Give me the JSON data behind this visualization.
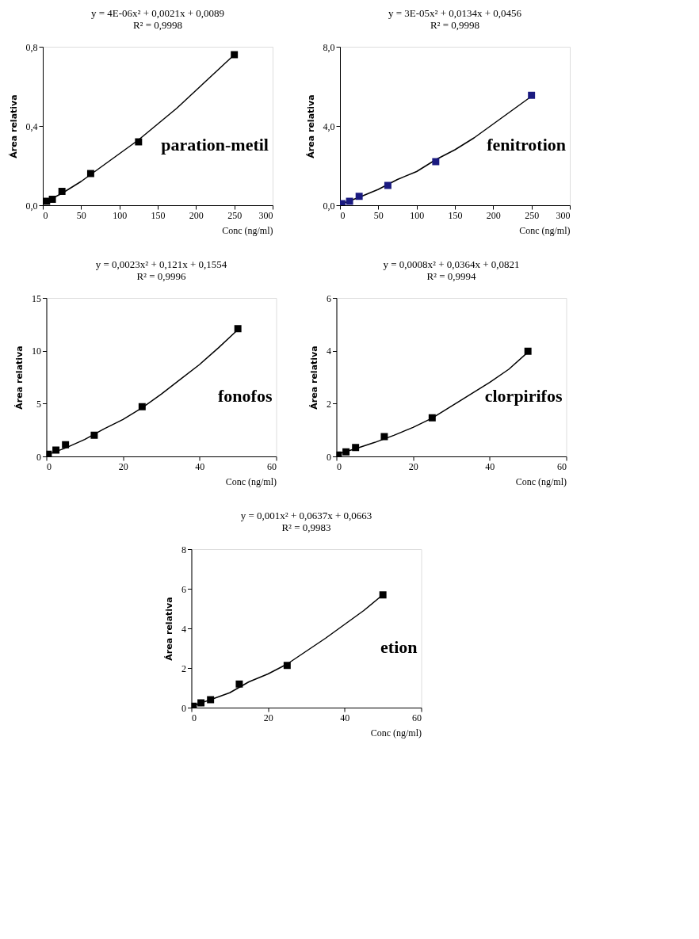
{
  "chart_data": [
    {
      "type": "scatter",
      "annotations": [
        "y = 4E-06x² + 0,0021x + 0,0089",
        "R² = 0,9998",
        "paration-metil"
      ],
      "xlabel": "Conc (ng/ml)",
      "ylabel": "Área relativa",
      "xlim": [
        0,
        300
      ],
      "xticks": [
        0,
        50,
        100,
        150,
        200,
        250,
        300
      ],
      "ylim": [
        0,
        0.8
      ],
      "yticks": [
        {
          "value": 0,
          "label": "0,0"
        },
        {
          "value": 0.4,
          "label": "0,4"
        },
        {
          "value": 0.8,
          "label": "0,8"
        }
      ],
      "series": [
        {
          "type": "line",
          "color": "#000000",
          "marker": "none",
          "x": [
            5,
            25,
            50,
            75,
            100,
            125,
            150,
            175,
            200,
            225,
            250
          ],
          "values": [
            0.02,
            0.06,
            0.12,
            0.19,
            0.26,
            0.33,
            0.41,
            0.49,
            0.58,
            0.67,
            0.76
          ]
        },
        {
          "color": "#000000",
          "marker": "square",
          "x": [
            5,
            12.5,
            25,
            62.5,
            125,
            250
          ],
          "values": [
            0.02,
            0.03,
            0.07,
            0.16,
            0.32,
            0.76
          ]
        }
      ]
    },
    {
      "type": "scatter",
      "annotations": [
        "y = 3E-05x² + 0,0134x + 0,0456",
        "R² = 0,9998",
        "fenitrotion"
      ],
      "xlabel": "Conc (ng/ml)",
      "ylabel": "Área relativa",
      "xlim": [
        0,
        300
      ],
      "xticks": [
        0,
        50,
        100,
        150,
        200,
        250,
        300
      ],
      "ylim": [
        0,
        8
      ],
      "yticks": [
        {
          "value": 0,
          "label": "0,0"
        },
        {
          "value": 4,
          "label": "4,0"
        },
        {
          "value": 8,
          "label": "8,0"
        }
      ],
      "series": [
        {
          "type": "line",
          "color": "#000000",
          "marker": "none",
          "x": [
            2,
            25,
            50,
            75,
            100,
            125,
            150,
            175,
            200,
            225,
            250
          ],
          "values": [
            0.07,
            0.4,
            0.8,
            1.3,
            1.7,
            2.3,
            2.8,
            3.4,
            4.1,
            4.8,
            5.5
          ]
        },
        {
          "color": "#1a1a80",
          "marker": "square",
          "x": [
            2.5,
            12.5,
            25,
            62.5,
            125,
            250
          ],
          "values": [
            0.08,
            0.2,
            0.45,
            1.0,
            2.2,
            5.55
          ]
        }
      ]
    },
    {
      "type": "scatter",
      "annotations": [
        "y = 0,0023x² + 0,121x + 0,1554",
        "R² = 0,9996",
        "fonofos"
      ],
      "xlabel": "Conc (ng/ml)",
      "ylabel": "Área relativa",
      "xlim": [
        0,
        60
      ],
      "xticks": [
        0,
        20,
        40,
        60
      ],
      "ylim": [
        0,
        15
      ],
      "yticks": [
        0,
        5,
        10,
        15
      ],
      "series": [
        {
          "type": "line",
          "color": "#000000",
          "marker": "none",
          "x": [
            0.5,
            5,
            10,
            15,
            20,
            25,
            30,
            35,
            40,
            45,
            50
          ],
          "values": [
            0.2,
            0.8,
            1.6,
            2.6,
            3.5,
            4.6,
            5.9,
            7.3,
            8.7,
            10.3,
            12.0
          ]
        },
        {
          "color": "#000000",
          "marker": "square",
          "x": [
            0.5,
            2.5,
            5,
            12.5,
            25,
            50
          ],
          "values": [
            0.2,
            0.6,
            1.1,
            2.0,
            4.7,
            12.1
          ]
        }
      ]
    },
    {
      "type": "scatter",
      "annotations": [
        "y = 0,0008x² + 0,0364x + 0,0821",
        "R² = 0,9994",
        "clorpirifos"
      ],
      "xlabel": "Conc (ng/ml)",
      "ylabel": "Área relativa",
      "xlim": [
        0,
        60
      ],
      "xticks": [
        0,
        20,
        40,
        60
      ],
      "ylim": [
        0,
        6
      ],
      "yticks": [
        0,
        2,
        4,
        6
      ],
      "series": [
        {
          "type": "line",
          "color": "#000000",
          "marker": "none",
          "x": [
            0.5,
            5,
            10,
            15,
            20,
            25,
            30,
            35,
            40,
            45,
            50
          ],
          "values": [
            0.1,
            0.29,
            0.53,
            0.8,
            1.1,
            1.45,
            1.9,
            2.35,
            2.8,
            3.3,
            3.95
          ]
        },
        {
          "color": "#000000",
          "marker": "square",
          "x": [
            0.5,
            2.5,
            5,
            12.5,
            25,
            50
          ],
          "values": [
            0.05,
            0.17,
            0.34,
            0.75,
            1.46,
            3.98
          ]
        }
      ]
    },
    {
      "type": "scatter",
      "annotations": [
        "y = 0,001x² + 0,0637x + 0,0663",
        "R² = 0,9983",
        "etion"
      ],
      "xlabel": "Conc (ng/ml)",
      "ylabel": "Área relativa",
      "xlim": [
        0,
        60
      ],
      "xticks": [
        0,
        20,
        40,
        60
      ],
      "ylim": [
        0,
        8
      ],
      "yticks": [
        0,
        2,
        4,
        6,
        8
      ],
      "series": [
        {
          "type": "line",
          "color": "#000000",
          "marker": "none",
          "x": [
            0.5,
            5,
            10,
            15,
            20,
            25,
            30,
            35,
            40,
            45,
            50
          ],
          "values": [
            0.1,
            0.4,
            0.75,
            1.3,
            1.7,
            2.2,
            2.85,
            3.5,
            4.2,
            4.9,
            5.7
          ]
        },
        {
          "color": "#000000",
          "marker": "square",
          "x": [
            0.5,
            2.5,
            5,
            12.5,
            25,
            50
          ],
          "values": [
            0.07,
            0.24,
            0.4,
            1.19,
            2.13,
            5.69
          ]
        }
      ]
    }
  ]
}
